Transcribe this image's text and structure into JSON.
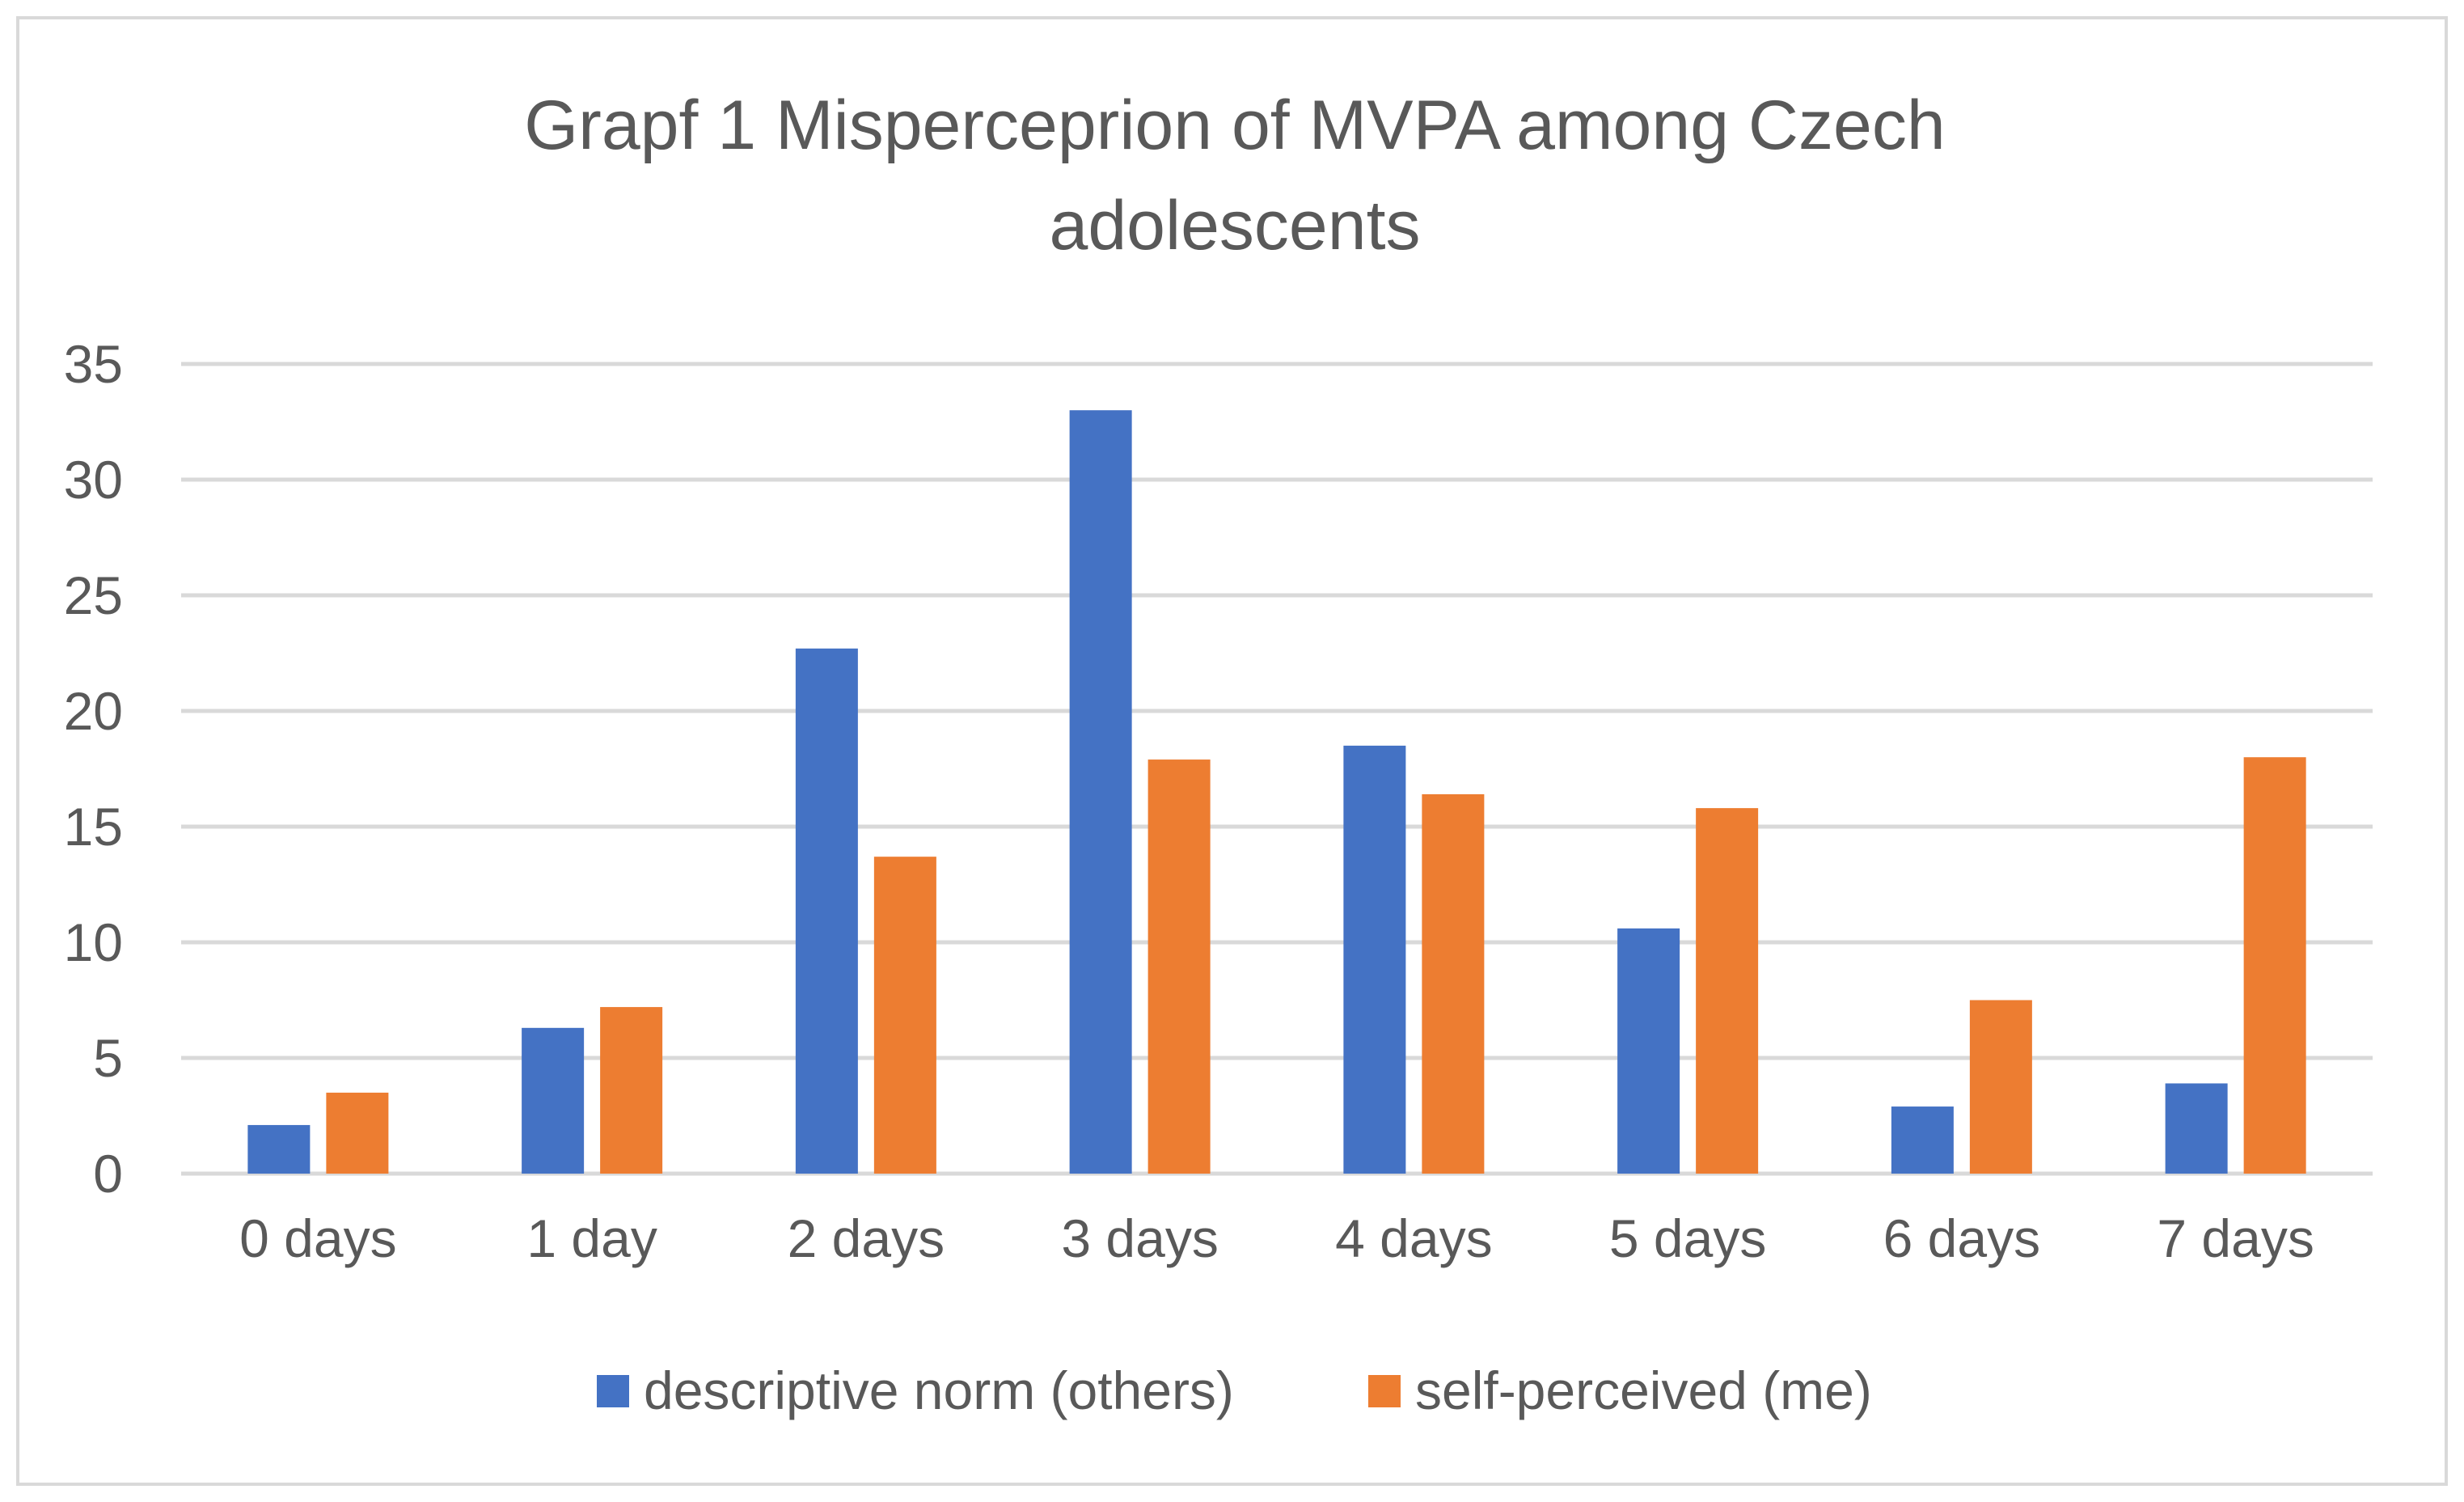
{
  "chart_data": {
    "type": "bar",
    "title": "Grapf 1 Misperceprion of MVPA among Czech adolescents",
    "title_lines": [
      "Grapf 1 Misperceprion of MVPA among Czech",
      "adolescents"
    ],
    "categories": [
      "0 days",
      "1 day",
      "2 days",
      "3 days",
      "4 days",
      "5 days",
      "6 days",
      "7 days"
    ],
    "series": [
      {
        "name": "descriptive norm (others)",
        "color": "#4472c4",
        "values": [
          2.1,
          6.3,
          22.7,
          33.0,
          18.5,
          10.6,
          2.9,
          3.9
        ]
      },
      {
        "name": "self-perceived (me)",
        "color": "#ed7d31",
        "values": [
          3.5,
          7.2,
          13.7,
          17.9,
          16.4,
          15.8,
          7.5,
          18.0
        ]
      }
    ],
    "xlabel": "",
    "ylabel": "",
    "ylim": [
      0,
      35
    ],
    "yticks": [
      0,
      5,
      10,
      15,
      20,
      25,
      30,
      35
    ],
    "ytick_labels": [
      "0",
      "5",
      "10",
      "15",
      "20",
      "25",
      "30",
      "35"
    ],
    "grid": true,
    "legend_position": "bottom-center",
    "gridline_color": "#d9d9d9",
    "text_color": "#595959"
  }
}
